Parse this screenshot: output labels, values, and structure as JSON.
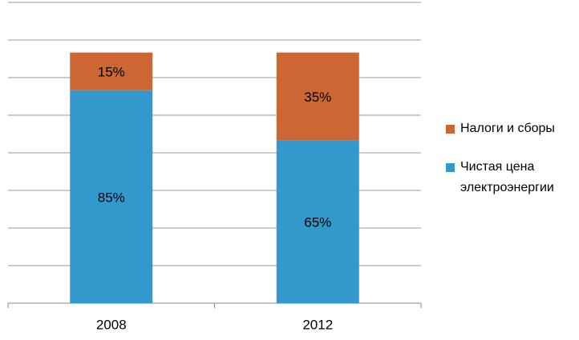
{
  "chart_data": {
    "type": "stacked_bar",
    "categories": [
      "2008",
      "2012"
    ],
    "series": [
      {
        "name": "Чистая цена электроэнергии",
        "color": "#3399cc",
        "values": [
          85,
          65
        ],
        "value_labels": [
          "85%",
          "65%"
        ]
      },
      {
        "name": "Налоги и сборы",
        "color": "#cc6633",
        "values": [
          15,
          35
        ],
        "value_labels": [
          "15%",
          "35%"
        ]
      }
    ],
    "ylim": [
      0,
      120
    ],
    "yticks": [
      0,
      15,
      30,
      45,
      60,
      75,
      90,
      105,
      120
    ],
    "grid": true,
    "legend": "right"
  }
}
